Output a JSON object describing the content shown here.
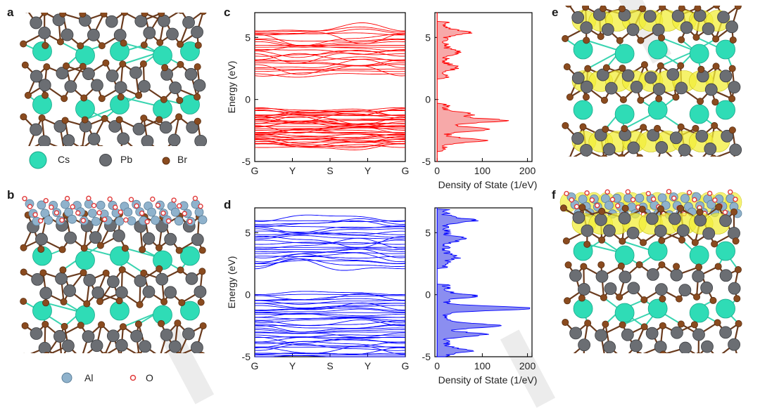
{
  "panels": {
    "a": "a",
    "b": "b",
    "c": "c",
    "d": "d",
    "e": "e",
    "f": "f"
  },
  "legend_top": [
    {
      "name": "Cs",
      "color": "#2fdcb6"
    },
    {
      "name": "Pb",
      "color": "#6b6e73"
    },
    {
      "name": "Br",
      "color": "#8a4b1f"
    }
  ],
  "legend_bottom": [
    {
      "name": "Al",
      "color": "#8fb2cc"
    },
    {
      "name": "O",
      "color": "#e03a3a"
    }
  ],
  "colors": {
    "band_top": "#ff0000",
    "band_bottom": "#0000ff",
    "dos_top_fill": "#f7a9a9",
    "dos_bottom_fill": "#8b8ef0",
    "isosurface": "#f2ee3a"
  },
  "chart_data": [
    {
      "type": "line",
      "panel": "c",
      "ylabel": "Energy (eV)",
      "ylim": [
        -5,
        7
      ],
      "yticks": [
        -5,
        0,
        5
      ],
      "kpath": [
        "G",
        "Y",
        "S",
        "Y",
        "G"
      ],
      "valence_range": [
        -3.8,
        -0.8
      ],
      "conduction_range": [
        2.0,
        5.7
      ]
    },
    {
      "type": "area",
      "panel": "c-dos",
      "xlabel": "Density of State (1/eV)",
      "xlim": [
        -5,
        210
      ],
      "xticks": [
        0,
        100,
        200
      ],
      "ylim": [
        -5,
        7
      ],
      "yticks": [
        -5,
        0,
        5
      ],
      "peaks": [
        {
          "energy": -3.3,
          "dos": 85
        },
        {
          "energy": -2.4,
          "dos": 95
        },
        {
          "energy": -1.7,
          "dos": 130
        },
        {
          "energy": -1.2,
          "dos": 60
        },
        {
          "energy": 2.6,
          "dos": 25
        },
        {
          "energy": 3.8,
          "dos": 30
        },
        {
          "energy": 5.4,
          "dos": 55
        }
      ]
    },
    {
      "type": "line",
      "panel": "d",
      "ylabel": "Energy (eV)",
      "ylim": [
        -5,
        7
      ],
      "yticks": [
        -5,
        0,
        5
      ],
      "kpath": [
        "G",
        "Y",
        "S",
        "Y",
        "G"
      ],
      "valence_range": [
        -5.0,
        0.1
      ],
      "conduction_range": [
        2.3,
        6.1
      ]
    },
    {
      "type": "area",
      "panel": "d-dos",
      "xlabel": "Density of State (1/eV)",
      "xlim": [
        -5,
        210
      ],
      "xticks": [
        0,
        100,
        200
      ],
      "ylim": [
        -5,
        7
      ],
      "yticks": [
        -5,
        0,
        5
      ],
      "peaks": [
        {
          "energy": -4.5,
          "dos": 55
        },
        {
          "energy": -3.2,
          "dos": 85
        },
        {
          "energy": -2.5,
          "dos": 120
        },
        {
          "energy": -1.1,
          "dos": 195
        },
        {
          "energy": -0.1,
          "dos": 65
        },
        {
          "energy": 3.0,
          "dos": 25
        },
        {
          "energy": 4.5,
          "dos": 45
        },
        {
          "energy": 6.0,
          "dos": 65
        }
      ]
    }
  ]
}
